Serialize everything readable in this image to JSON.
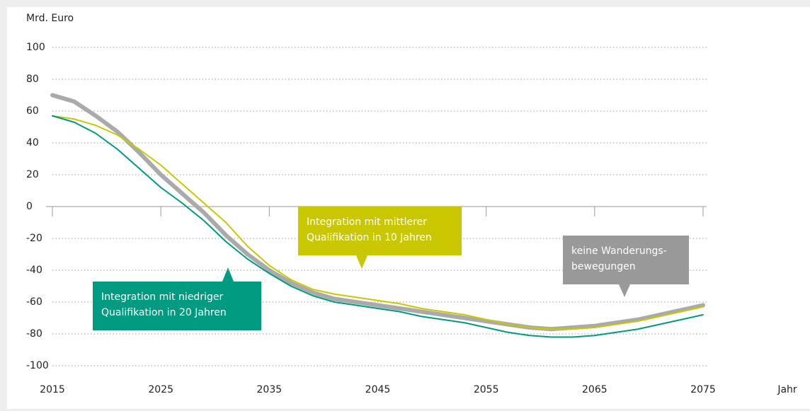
{
  "chart_data": {
    "type": "line",
    "ylabel": "Mrd. Euro",
    "xlabel": "Jahr",
    "x": [
      2015,
      2017,
      2019,
      2021,
      2023,
      2025,
      2027,
      2029,
      2031,
      2033,
      2035,
      2037,
      2039,
      2041,
      2043,
      2045,
      2047,
      2049,
      2051,
      2053,
      2055,
      2057,
      2059,
      2061,
      2063,
      2065,
      2067,
      2069,
      2071,
      2073,
      2075
    ],
    "series": [
      {
        "name": "Integration mit niedriger Qualifikation in 20 Jahren",
        "color": "#009a80",
        "values": [
          57,
          53,
          46,
          36,
          24,
          12,
          2,
          -9,
          -22,
          -33,
          -42,
          -50,
          -56,
          -60,
          -62,
          -64,
          -66,
          -69,
          -71,
          -73,
          -76,
          -79,
          -81,
          -82,
          -82,
          -81,
          -79,
          -77,
          -74,
          -71,
          -68
        ]
      },
      {
        "name": "Integration mit mittlerer Qualifikation in 10 Jahren",
        "color": "#c9c700",
        "values": [
          57,
          55,
          51,
          45,
          36,
          26,
          14,
          2,
          -10,
          -25,
          -37,
          -46,
          -52,
          -55,
          -57,
          -59,
          -61,
          -64,
          -66,
          -68,
          -71,
          -74,
          -76,
          -77,
          -77,
          -76,
          -74,
          -72,
          -69,
          -66,
          -63
        ]
      },
      {
        "name": "keine Wanderungs­bewegungen",
        "color": "#aaaaaa",
        "values": [
          70,
          66,
          57,
          47,
          34,
          20,
          8,
          -4,
          -18,
          -30,
          -40,
          -48,
          -54,
          -58,
          -60,
          -62,
          -64,
          -66,
          -68,
          -70,
          -72,
          -74,
          -76,
          -77,
          -76,
          -75,
          -73,
          -71,
          -68,
          -65,
          -62
        ]
      }
    ],
    "xlim": [
      2015,
      2075
    ],
    "xticks": [
      2015,
      2025,
      2035,
      2045,
      2055,
      2065,
      2075
    ],
    "ylim": [
      -100,
      100
    ],
    "yticks": [
      -100,
      -80,
      -60,
      -40,
      -20,
      0,
      20,
      40,
      60,
      80,
      100
    ],
    "grid": true
  }
}
